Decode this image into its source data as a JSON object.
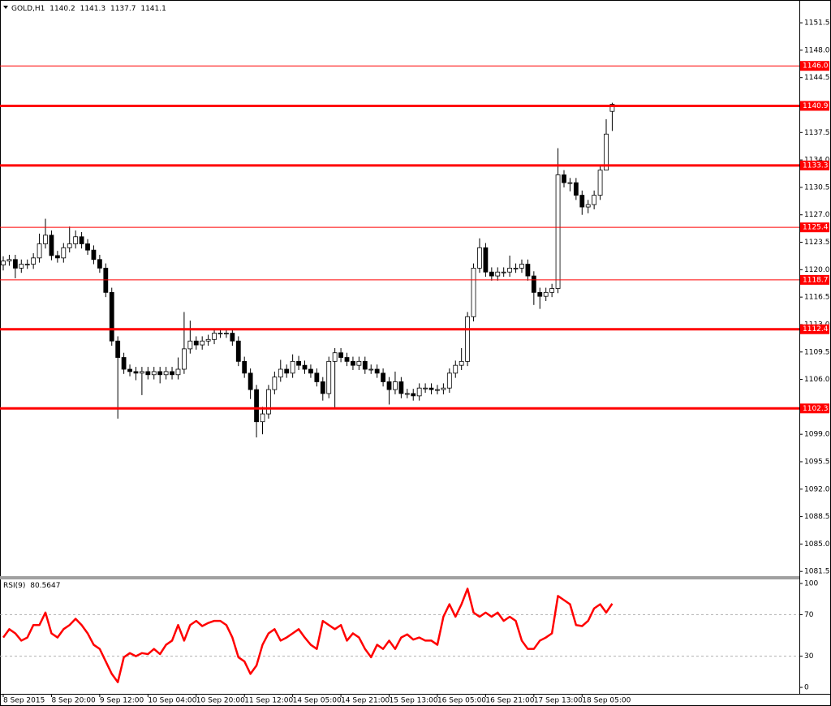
{
  "chart_data": [
    {
      "type": "candlestick",
      "symbol": "GOLD,H1",
      "categories": [
        "8 Sep 2015",
        null,
        null,
        null,
        null,
        null,
        null,
        null,
        "8 Sep 20:00",
        null,
        null,
        null,
        null,
        null,
        null,
        null,
        "9 Sep 12:00",
        null,
        null,
        null,
        null,
        null,
        null,
        null,
        "10 Sep 04:00",
        null,
        null,
        null,
        null,
        null,
        null,
        null,
        "10 Sep 20:00",
        null,
        null,
        null,
        null,
        null,
        null,
        null,
        "11 Sep 12:00",
        null,
        null,
        null,
        null,
        null,
        null,
        null,
        "14 Sep 05:00",
        null,
        null,
        null,
        null,
        null,
        null,
        null,
        "14 Sep 21:00",
        null,
        null,
        null,
        null,
        null,
        null,
        null,
        "15 Sep 13:00",
        null,
        null,
        null,
        null,
        null,
        null,
        null,
        "16 Sep 05:00",
        null,
        null,
        null,
        null,
        null,
        null,
        null,
        "16 Sep 21:00",
        null,
        null,
        null,
        null,
        null,
        null,
        null,
        "17 Sep 13:00",
        null,
        null,
        null,
        null,
        null,
        null,
        null,
        "18 Sep 05:00",
        null,
        null,
        null,
        null,
        null
      ],
      "open": [
        1120.6,
        1121.1,
        1121.3,
        1120.2,
        1120.7,
        1120.7,
        1121.5,
        1123.3,
        1124.4,
        1121.8,
        1121.5,
        1122.8,
        1123.3,
        1124.2,
        1123.3,
        1122.5,
        1121.3,
        1120.2,
        1117.1,
        1110.9,
        1108.8,
        1107.3,
        1107.0,
        1106.8,
        1107.0,
        1106.6,
        1107.0,
        1106.6,
        1107.0,
        1106.6,
        1107.3,
        1109.9,
        1110.9,
        1110.4,
        1110.9,
        1111.1,
        1111.9,
        1111.9,
        1111.9,
        1110.9,
        1108.3,
        1106.8,
        1104.7,
        1100.6,
        1101.6,
        1104.7,
        1106.3,
        1107.3,
        1106.8,
        1108.3,
        1107.8,
        1107.3,
        1106.8,
        1105.7,
        1104.2,
        1108.3,
        1109.4,
        1108.8,
        1108.3,
        1107.8,
        1108.3,
        1107.3,
        1107.3,
        1106.8,
        1105.7,
        1104.7,
        1105.7,
        1104.2,
        1104.2,
        1103.9,
        1104.9,
        1104.9,
        1104.7,
        1104.7,
        1104.9,
        1106.8,
        1107.8,
        1108.3,
        1114.0,
        1120.2,
        1122.8,
        1119.7,
        1119.2,
        1119.7,
        1119.7,
        1120.2,
        1120.2,
        1120.7,
        1119.2,
        1117.1,
        1116.6,
        1117.1,
        1117.6,
        1132.1,
        1131.1,
        1131.1,
        1129.5,
        1128.0,
        1128.3,
        1129.5,
        1132.7,
        1140.2
      ],
      "high": [
        1121.7,
        1121.9,
        1121.9,
        1121.3,
        1121.3,
        1122.1,
        1124.6,
        1126.5,
        1125.0,
        1122.4,
        1123.4,
        1125.5,
        1125.0,
        1124.8,
        1123.9,
        1123.1,
        1121.9,
        1120.8,
        1117.7,
        1111.5,
        1109.4,
        1107.9,
        1107.6,
        1107.6,
        1107.6,
        1107.6,
        1107.6,
        1107.6,
        1107.6,
        1108.8,
        1114.6,
        1113.5,
        1111.5,
        1111.5,
        1111.7,
        1112.5,
        1112.5,
        1112.5,
        1112.5,
        1111.5,
        1108.9,
        1107.4,
        1105.3,
        1102.5,
        1105.3,
        1107.0,
        1108.5,
        1107.9,
        1109.2,
        1109.0,
        1108.4,
        1107.9,
        1107.4,
        1106.3,
        1108.9,
        1110.0,
        1110.0,
        1109.4,
        1108.9,
        1108.9,
        1108.9,
        1107.9,
        1107.9,
        1107.4,
        1106.3,
        1107.0,
        1106.3,
        1104.8,
        1104.8,
        1105.5,
        1105.5,
        1105.5,
        1105.3,
        1105.5,
        1107.4,
        1108.4,
        1110.0,
        1114.6,
        1120.8,
        1124.0,
        1123.4,
        1120.3,
        1120.3,
        1120.3,
        1121.8,
        1120.8,
        1121.3,
        1121.3,
        1119.8,
        1117.7,
        1117.7,
        1118.2,
        1135.5,
        1132.7,
        1131.7,
        1131.7,
        1130.1,
        1128.9,
        1130.1,
        1133.3,
        1139.2,
        1141.3
      ],
      "low": [
        1119.9,
        1120.5,
        1118.9,
        1119.6,
        1120.1,
        1120.1,
        1120.9,
        1122.7,
        1121.2,
        1120.9,
        1120.9,
        1122.2,
        1122.7,
        1122.7,
        1121.9,
        1120.7,
        1119.6,
        1116.5,
        1110.3,
        1101.0,
        1106.7,
        1106.4,
        1105.9,
        1104.0,
        1106.0,
        1106.0,
        1105.5,
        1106.0,
        1106.0,
        1106.0,
        1106.7,
        1109.3,
        1109.8,
        1109.8,
        1110.3,
        1110.5,
        1111.3,
        1111.3,
        1110.3,
        1107.7,
        1106.2,
        1103.5,
        1098.6,
        1099.0,
        1101.0,
        1104.1,
        1105.7,
        1106.2,
        1106.2,
        1107.2,
        1106.7,
        1106.2,
        1105.1,
        1103.3,
        1103.6,
        1102.3,
        1108.2,
        1107.7,
        1107.2,
        1107.2,
        1106.7,
        1106.7,
        1106.2,
        1105.1,
        1102.8,
        1104.1,
        1103.6,
        1103.6,
        1103.3,
        1103.3,
        1104.3,
        1104.1,
        1104.1,
        1104.1,
        1104.3,
        1106.2,
        1107.2,
        1107.7,
        1113.4,
        1119.6,
        1119.1,
        1118.6,
        1118.6,
        1119.1,
        1119.1,
        1119.6,
        1119.6,
        1118.6,
        1115.5,
        1115.0,
        1116.0,
        1116.5,
        1117.0,
        1130.5,
        1130.0,
        1128.9,
        1127.0,
        1127.2,
        1127.7,
        1128.9,
        1133.0,
        1137.7
      ],
      "close": [
        1121.1,
        1121.3,
        1120.2,
        1120.7,
        1120.7,
        1121.5,
        1123.3,
        1124.4,
        1121.8,
        1121.5,
        1122.8,
        1123.3,
        1124.2,
        1123.3,
        1122.5,
        1121.3,
        1120.2,
        1117.1,
        1110.9,
        1108.8,
        1107.3,
        1107.0,
        1106.8,
        1107.0,
        1106.6,
        1107.0,
        1106.6,
        1107.0,
        1106.6,
        1107.3,
        1109.9,
        1110.9,
        1110.4,
        1110.9,
        1111.1,
        1111.9,
        1111.9,
        1111.9,
        1110.9,
        1108.3,
        1106.8,
        1104.7,
        1100.6,
        1101.6,
        1104.7,
        1106.3,
        1107.3,
        1106.8,
        1108.3,
        1107.8,
        1107.3,
        1106.8,
        1105.7,
        1104.2,
        1108.3,
        1109.4,
        1108.8,
        1108.3,
        1107.8,
        1108.3,
        1107.3,
        1107.3,
        1106.8,
        1105.7,
        1104.7,
        1105.7,
        1104.2,
        1104.2,
        1103.9,
        1104.9,
        1104.9,
        1104.7,
        1104.7,
        1104.9,
        1106.8,
        1107.8,
        1108.3,
        1114.0,
        1120.2,
        1122.8,
        1119.7,
        1119.2,
        1119.7,
        1119.7,
        1120.2,
        1120.2,
        1120.7,
        1119.2,
        1117.1,
        1116.6,
        1117.1,
        1117.6,
        1132.1,
        1131.1,
        1131.1,
        1129.5,
        1128.0,
        1128.3,
        1129.5,
        1132.7,
        1137.3,
        1141.1
      ],
      "ylim": [
        1080.9,
        1154.2
      ],
      "yticks": [
        1151.5,
        {
          "value": 1148,
          "label": "1148.0"
        },
        1144.5,
        {
          "value": 1141,
          "label": "1141.0"
        },
        1137.5,
        {
          "value": 1134,
          "label": "1134.0"
        },
        1130.5,
        {
          "value": 1127,
          "label": "1127.0"
        },
        1123.5,
        {
          "value": 1120,
          "label": "1120.0"
        },
        1116.5,
        {
          "value": 1113,
          "label": "1113.0"
        },
        1109.5,
        {
          "value": 1106,
          "label": "1106.0"
        },
        1102.5,
        {
          "value": 1099,
          "label": "1099.0"
        },
        1095.5,
        {
          "value": 1092,
          "label": "1092.0"
        },
        1088.5,
        {
          "value": 1085,
          "label": "1085.0"
        },
        1081.5
      ],
      "lines": [
        {
          "value": 1146,
          "label": "1146.0",
          "style": "thin"
        },
        {
          "value": 1140.9,
          "style": "thick"
        },
        {
          "value": 1133.3,
          "style": "thick"
        },
        {
          "value": 1125.4,
          "style": "thin"
        },
        {
          "value": 1118.7,
          "style": "thin"
        },
        {
          "value": 1112.4,
          "style": "thick"
        },
        {
          "value": 1102.3,
          "style": "thick"
        }
      ],
      "line_color": "#ff0000",
      "up_color": "#ffffff",
      "down_color": "#000000"
    },
    {
      "type": "line",
      "title": "RSI(9)",
      "color": "#ff0000",
      "values": [
        48,
        56,
        52,
        45,
        48,
        60,
        60,
        72,
        52,
        48,
        56,
        60,
        66,
        60,
        52,
        41,
        37,
        25,
        13,
        5,
        29,
        33,
        30,
        33,
        32,
        37,
        32,
        41,
        45,
        60,
        45,
        60,
        64,
        59,
        62,
        64,
        64,
        60,
        48,
        29,
        25,
        13,
        21,
        41,
        52,
        56,
        45,
        48,
        52,
        56,
        48,
        41,
        37,
        64,
        60,
        56,
        60,
        45,
        52,
        48,
        37,
        29,
        41,
        37,
        45,
        37,
        48,
        51,
        46,
        48,
        45,
        45,
        41,
        68,
        80,
        68,
        80,
        95,
        72,
        68,
        72,
        68,
        72,
        64,
        68,
        64,
        45,
        37,
        37,
        45,
        48,
        52,
        88,
        84,
        80,
        60,
        59,
        64,
        76,
        80,
        72,
        80.5647
      ],
      "ylim": [
        -6.2,
        103.9
      ],
      "yticks": [
        100,
        70,
        30,
        0
      ],
      "levels": [
        70,
        30
      ]
    }
  ]
}
